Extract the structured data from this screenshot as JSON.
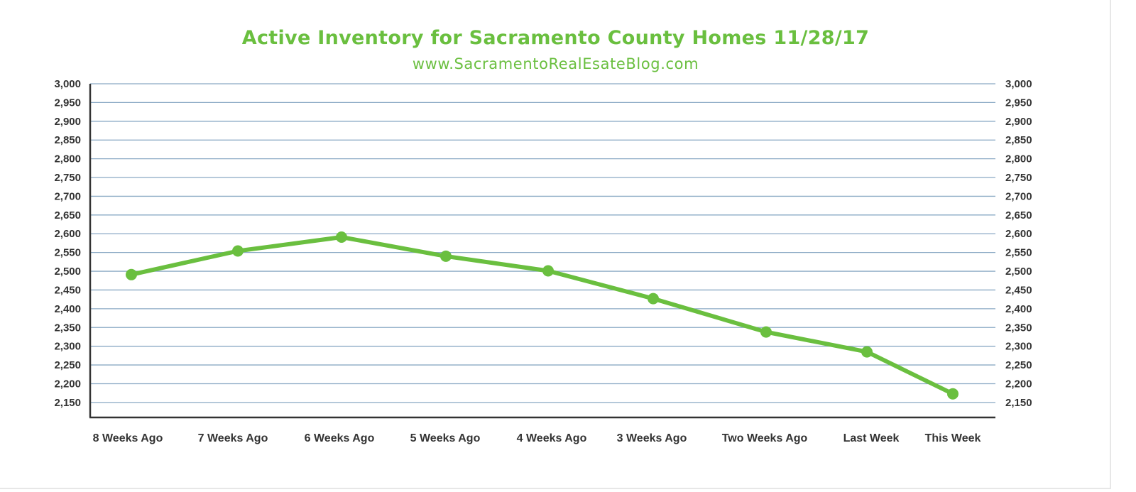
{
  "colors": {
    "accent": "#6abf3f",
    "grid": "#8aa9c4",
    "axis": "#333333",
    "text": "#333333"
  },
  "chart_data": {
    "type": "line",
    "title": "Active Inventory for Sacramento County Homes 11/28/17",
    "subtitle": "www.SacramentoRealEsateBlog.com",
    "xlabel": "",
    "ylabel": "",
    "categories": [
      "8 Weeks Ago",
      "7 Weeks Ago",
      "6 Weeks Ago",
      "5 Weeks Ago",
      "4 Weeks Ago",
      "3 Weeks Ago",
      "Two Weeks Ago",
      "Last Week",
      "This Week"
    ],
    "series": [
      {
        "values": [
          2491,
          2554,
          2591,
          2540,
          2501,
          2427,
          2338,
          2285,
          2173
        ]
      }
    ],
    "ylim": [
      2110,
      3000
    ],
    "yticks": [
      3000,
      2950,
      2900,
      2850,
      2800,
      2750,
      2700,
      2650,
      2600,
      2550,
      2500,
      2450,
      2400,
      2350,
      2300,
      2250,
      2200,
      2150
    ],
    "ytick_labels": [
      "3,000",
      "2,950",
      "2,900",
      "2,850",
      "2,800",
      "2,750",
      "2,700",
      "2,650",
      "2,600",
      "2,550",
      "2,500",
      "2,450",
      "2,400",
      "2,350",
      "2,300",
      "2,250",
      "2,200",
      "2,150"
    ],
    "grid": true,
    "secondary_y_axis": true,
    "legend": "none"
  }
}
